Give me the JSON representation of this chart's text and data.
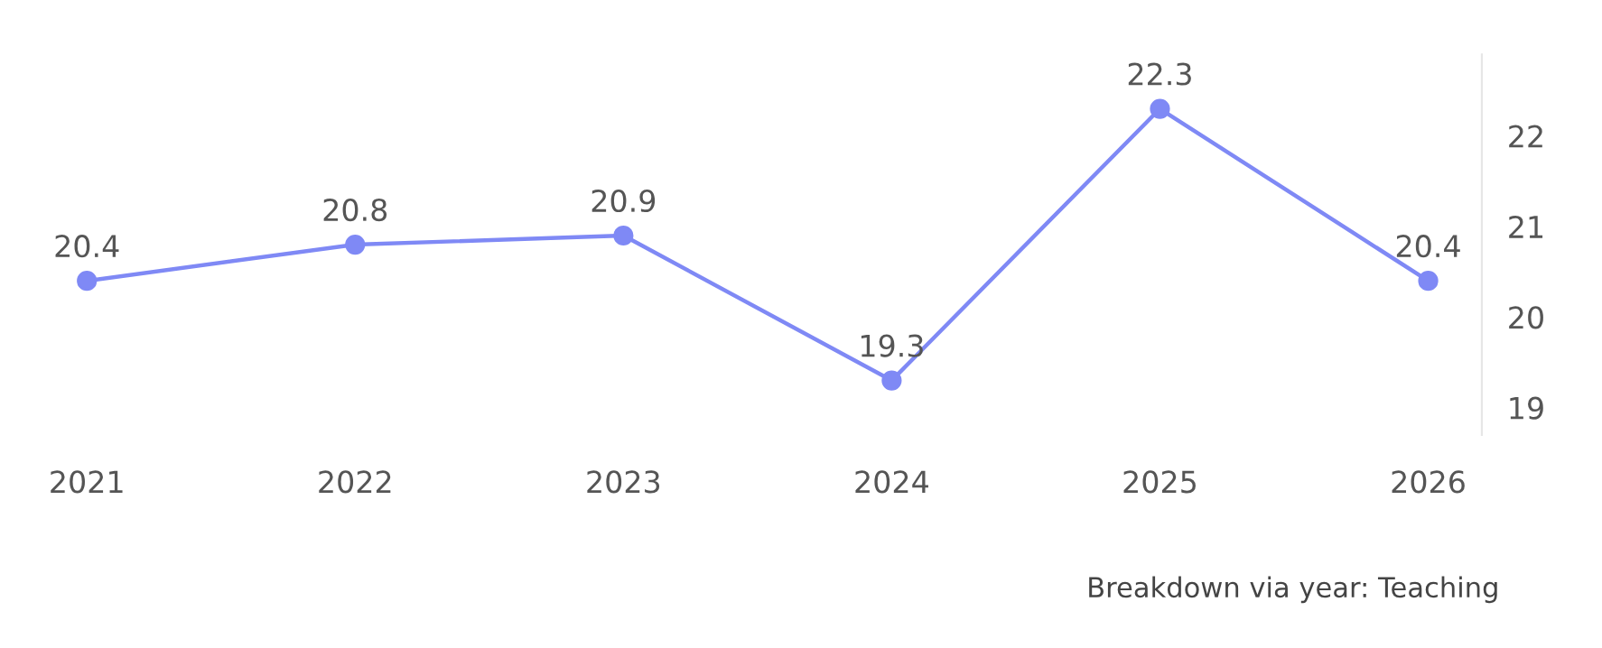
{
  "chart_data": {
    "type": "line",
    "categories": [
      "2021",
      "2022",
      "2023",
      "2024",
      "2025",
      "2026"
    ],
    "series": [
      {
        "color": "#7f89f5",
        "values": [
          20.4,
          20.8,
          20.9,
          19.3,
          22.3,
          20.4
        ]
      }
    ],
    "ylim": [
      18.7,
      22.9
    ],
    "yticks": [
      19,
      20,
      21,
      22
    ],
    "marker": "circle",
    "line_style": "solid",
    "data_labels": true,
    "grid": false,
    "legend": false,
    "annotations": [
      "Breakdown via year: Teaching"
    ]
  }
}
